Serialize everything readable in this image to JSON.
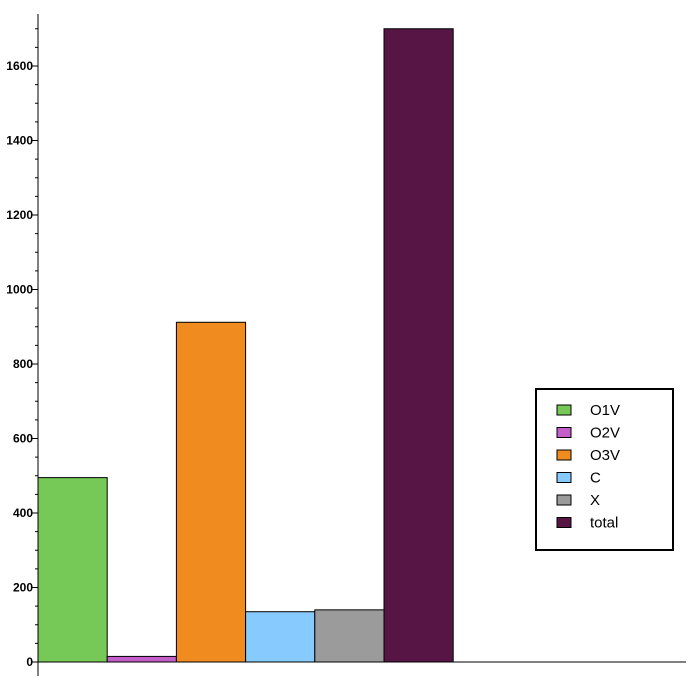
{
  "chart_data": {
    "type": "bar",
    "categories": [
      "O1V",
      "O2V",
      "O3V",
      "C",
      "X",
      "total"
    ],
    "values": [
      495,
      15,
      912,
      135,
      140,
      1700
    ],
    "colors": [
      "#76c956",
      "#c45ec8",
      "#ef8b1f",
      "#87cafd",
      "#9b9b9b",
      "#561545"
    ],
    "series_names": [
      "O1V",
      "O2V",
      "O3V",
      "C",
      "X",
      "total"
    ],
    "title": "",
    "xlabel": "",
    "ylabel": "",
    "ylim": [
      0,
      1730
    ],
    "yticks": [
      0,
      200,
      400,
      600,
      800,
      1000,
      1200,
      1400,
      1600
    ],
    "ytick_labels": [
      "0",
      "200",
      "400",
      "600",
      "800",
      "1000",
      "1200",
      "1400",
      "1600"
    ],
    "grid": false,
    "legend_position": "right"
  }
}
